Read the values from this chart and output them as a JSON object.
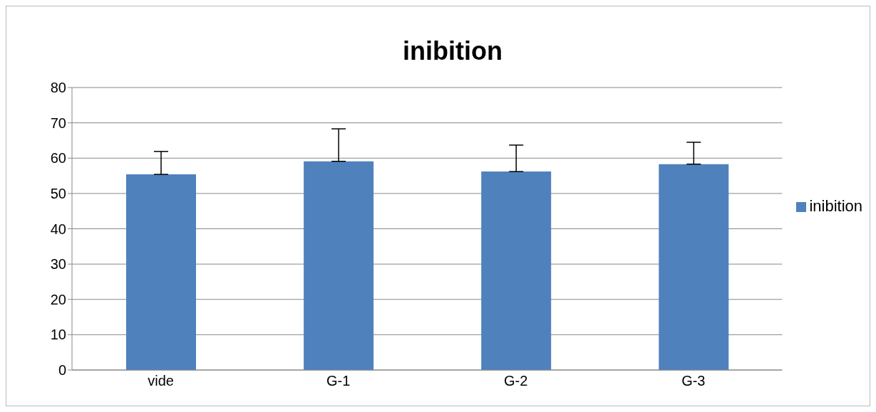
{
  "chart_data": {
    "type": "bar",
    "title": "inibition",
    "categories": [
      "vide",
      "G-1",
      "G-2",
      "G-3"
    ],
    "series": [
      {
        "name": "inibition",
        "color": "#4f81bd",
        "values": [
          55.4,
          59.1,
          56.2,
          58.3
        ],
        "errors": [
          [
            55.4,
            61.9
          ],
          [
            59.1,
            68.3
          ],
          [
            56.2,
            63.7
          ],
          [
            58.3,
            64.5
          ]
        ]
      }
    ],
    "ylim": [
      0,
      80
    ],
    "yticks": [
      0,
      10,
      20,
      30,
      40,
      50,
      60,
      70,
      80
    ],
    "grid": "y",
    "legend": "right"
  }
}
